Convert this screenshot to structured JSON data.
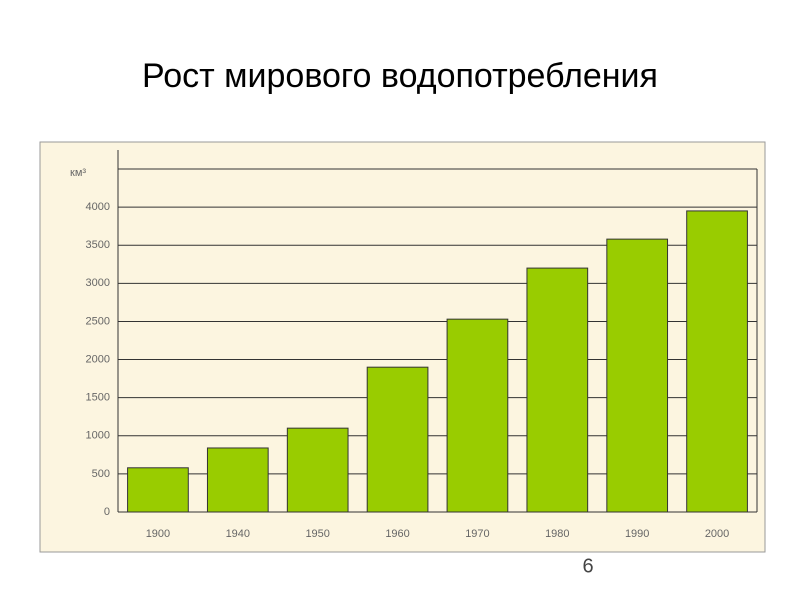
{
  "chart_data": {
    "type": "bar",
    "title": "Рост мирового водопотребления",
    "y_label": "км³",
    "page_number": "6",
    "categories": [
      "1900",
      "1940",
      "1950",
      "1960",
      "1970",
      "1980",
      "1990",
      "2000"
    ],
    "values": [
      580,
      840,
      1100,
      1900,
      2530,
      3200,
      3580,
      3950
    ],
    "color": "#99cc00",
    "ylim": [
      0,
      4500
    ],
    "yticks": [
      0,
      500,
      1000,
      1500,
      2000,
      2500,
      3000,
      3500,
      4000
    ],
    "grid": true
  }
}
